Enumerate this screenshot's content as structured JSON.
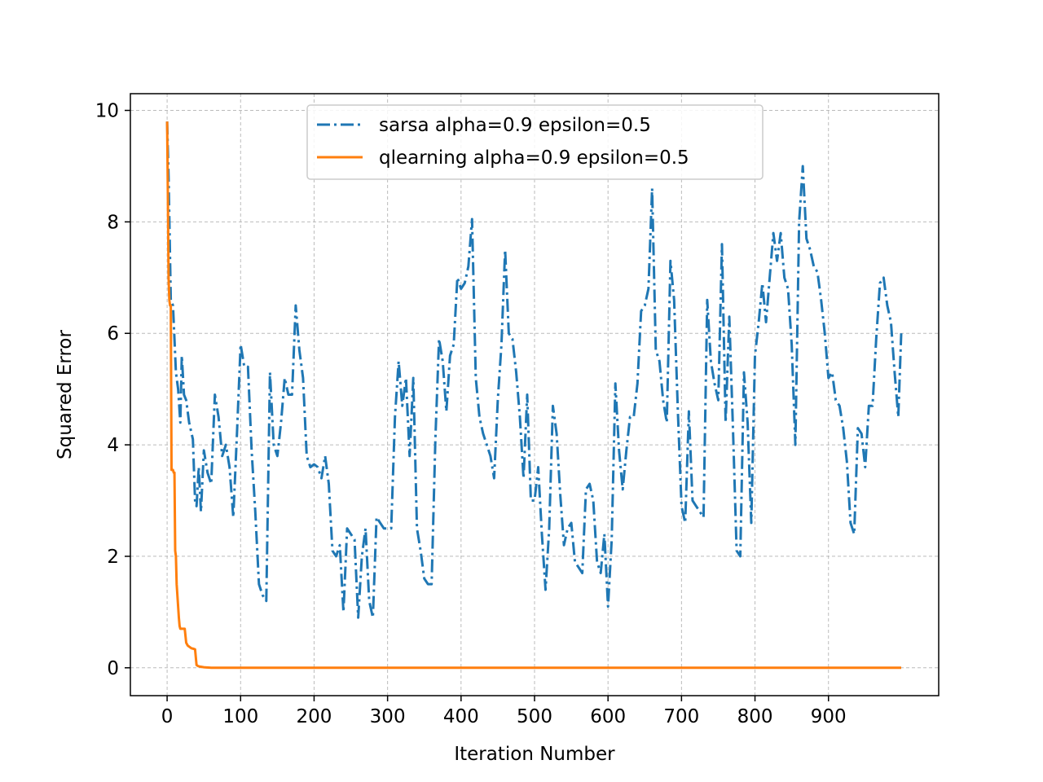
{
  "chart_data": {
    "type": "line",
    "title": "",
    "xlabel": "Iteration Number",
    "ylabel": "Squared Error",
    "xlim": [
      -50,
      1050
    ],
    "ylim": [
      -0.5,
      10.3
    ],
    "xticks": [
      0,
      100,
      200,
      300,
      400,
      500,
      600,
      700,
      800,
      900
    ],
    "yticks": [
      0,
      2,
      4,
      6,
      8,
      10
    ],
    "grid": true,
    "legend_placement": "top-center",
    "series": [
      {
        "name": "sarsa alpha=0.9 epsilon=0.5",
        "color": "#1f77b4",
        "linestyle": "dashdot",
        "x": [
          0,
          2,
          5,
          8,
          12,
          15,
          18,
          20,
          23,
          26,
          30,
          35,
          38,
          40,
          43,
          46,
          50,
          55,
          60,
          65,
          70,
          75,
          80,
          85,
          90,
          95,
          100,
          105,
          110,
          115,
          120,
          125,
          130,
          135,
          140,
          145,
          150,
          155,
          160,
          165,
          170,
          175,
          180,
          185,
          190,
          195,
          200,
          205,
          210,
          215,
          220,
          225,
          230,
          235,
          240,
          245,
          250,
          255,
          260,
          265,
          270,
          275,
          280,
          285,
          290,
          295,
          300,
          305,
          310,
          315,
          320,
          325,
          330,
          335,
          340,
          345,
          350,
          355,
          360,
          365,
          370,
          375,
          380,
          385,
          390,
          395,
          400,
          405,
          410,
          415,
          420,
          425,
          430,
          435,
          440,
          445,
          450,
          455,
          460,
          465,
          470,
          475,
          480,
          485,
          490,
          495,
          500,
          505,
          510,
          515,
          520,
          525,
          530,
          535,
          540,
          545,
          550,
          555,
          560,
          565,
          570,
          575,
          580,
          585,
          590,
          595,
          600,
          605,
          610,
          615,
          620,
          625,
          630,
          635,
          640,
          645,
          650,
          655,
          660,
          665,
          670,
          675,
          680,
          685,
          690,
          695,
          700,
          705,
          710,
          715,
          720,
          725,
          730,
          735,
          740,
          745,
          750,
          755,
          760,
          765,
          770,
          775,
          780,
          785,
          790,
          795,
          800,
          805,
          810,
          815,
          820,
          825,
          830,
          835,
          840,
          845,
          850,
          855,
          860,
          865,
          870,
          875,
          880,
          885,
          890,
          895,
          900,
          905,
          910,
          915,
          920,
          925,
          930,
          935,
          940,
          945,
          950,
          955,
          960,
          965,
          970,
          975,
          980,
          985,
          990,
          995,
          999
        ],
        "y": [
          9.8,
          8.8,
          6.6,
          6.5,
          5.3,
          5.0,
          4.4,
          5.6,
          4.9,
          4.8,
          4.4,
          4.1,
          3.0,
          2.9,
          3.6,
          2.8,
          3.9,
          3.5,
          3.3,
          4.9,
          4.5,
          3.8,
          4.0,
          3.6,
          2.7,
          4.2,
          5.8,
          5.4,
          5.4,
          3.9,
          2.8,
          1.5,
          1.3,
          1.2,
          5.3,
          4.0,
          3.8,
          4.4,
          5.2,
          4.9,
          4.9,
          6.5,
          5.7,
          5.2,
          3.8,
          3.6,
          3.65,
          3.6,
          3.4,
          3.8,
          3.3,
          2.1,
          2.0,
          2.2,
          1.0,
          2.5,
          2.4,
          2.3,
          0.9,
          2.0,
          2.5,
          1.2,
          0.9,
          2.7,
          2.6,
          2.5,
          2.5,
          2.5,
          4.5,
          5.5,
          4.7,
          5.2,
          3.8,
          5.2,
          2.5,
          2.1,
          1.6,
          1.5,
          1.5,
          4.1,
          5.9,
          5.5,
          4.6,
          5.6,
          5.8,
          7.0,
          6.8,
          6.9,
          7.2,
          8.05,
          5.2,
          4.5,
          4.2,
          4.0,
          3.8,
          3.4,
          4.8,
          5.8,
          7.5,
          6.0,
          5.9,
          5.3,
          4.5,
          3.4,
          4.9,
          3.0,
          3.0,
          3.6,
          2.4,
          1.4,
          2.5,
          4.7,
          4.2,
          3.1,
          2.2,
          2.5,
          2.6,
          1.9,
          1.8,
          1.7,
          3.2,
          3.3,
          3.0,
          1.9,
          1.7,
          2.4,
          1.1,
          2.3,
          5.1,
          3.9,
          3.2,
          3.9,
          4.5,
          4.5,
          5.1,
          6.4,
          6.5,
          6.8,
          8.6,
          5.7,
          5.5,
          4.8,
          4.4,
          7.3,
          6.6,
          4.6,
          2.9,
          2.6,
          4.6,
          3.0,
          2.9,
          2.8,
          2.7,
          6.6,
          5.5,
          5.1,
          4.8,
          7.6,
          4.4,
          6.3,
          4.3,
          2.1,
          2.0,
          5.3,
          4.4,
          2.6,
          5.6,
          6.2,
          6.9,
          6.2,
          7.0,
          7.8,
          7.3,
          7.8,
          7.0,
          6.8,
          5.8,
          4.0,
          8.0,
          9.0,
          7.7,
          7.5,
          7.2,
          7.1,
          6.6,
          6.0,
          5.2,
          5.3,
          4.8,
          4.7,
          4.3,
          3.7,
          2.6,
          2.4,
          4.3,
          4.2,
          3.6,
          4.7,
          4.7,
          5.9,
          6.9,
          7.0,
          6.5,
          6.2,
          5.3,
          4.5,
          6.0
        ]
      },
      {
        "name": "qlearning alpha=0.9 epsilon=0.5",
        "color": "#ff7f0e",
        "linestyle": "solid",
        "x": [
          0,
          1,
          2,
          3,
          4,
          5,
          6,
          7,
          8,
          9,
          10,
          11,
          12,
          13,
          14,
          15,
          16,
          17,
          18,
          19,
          20,
          22,
          24,
          26,
          28,
          30,
          33,
          36,
          38,
          40,
          42,
          45,
          50,
          60,
          100,
          200,
          300,
          400,
          500,
          600,
          700,
          800,
          900,
          999
        ],
        "y": [
          9.8,
          8.5,
          7.0,
          6.6,
          6.5,
          6.5,
          3.55,
          3.55,
          3.55,
          3.5,
          3.5,
          2.1,
          2.0,
          1.5,
          1.3,
          1.1,
          0.9,
          0.75,
          0.7,
          0.7,
          0.7,
          0.7,
          0.7,
          0.45,
          0.4,
          0.38,
          0.35,
          0.34,
          0.33,
          0.05,
          0.03,
          0.02,
          0.01,
          0.0,
          0.0,
          0.0,
          0.0,
          0.0,
          0.0,
          0.0,
          0.0,
          0.0,
          0.0,
          0.0
        ]
      }
    ]
  }
}
